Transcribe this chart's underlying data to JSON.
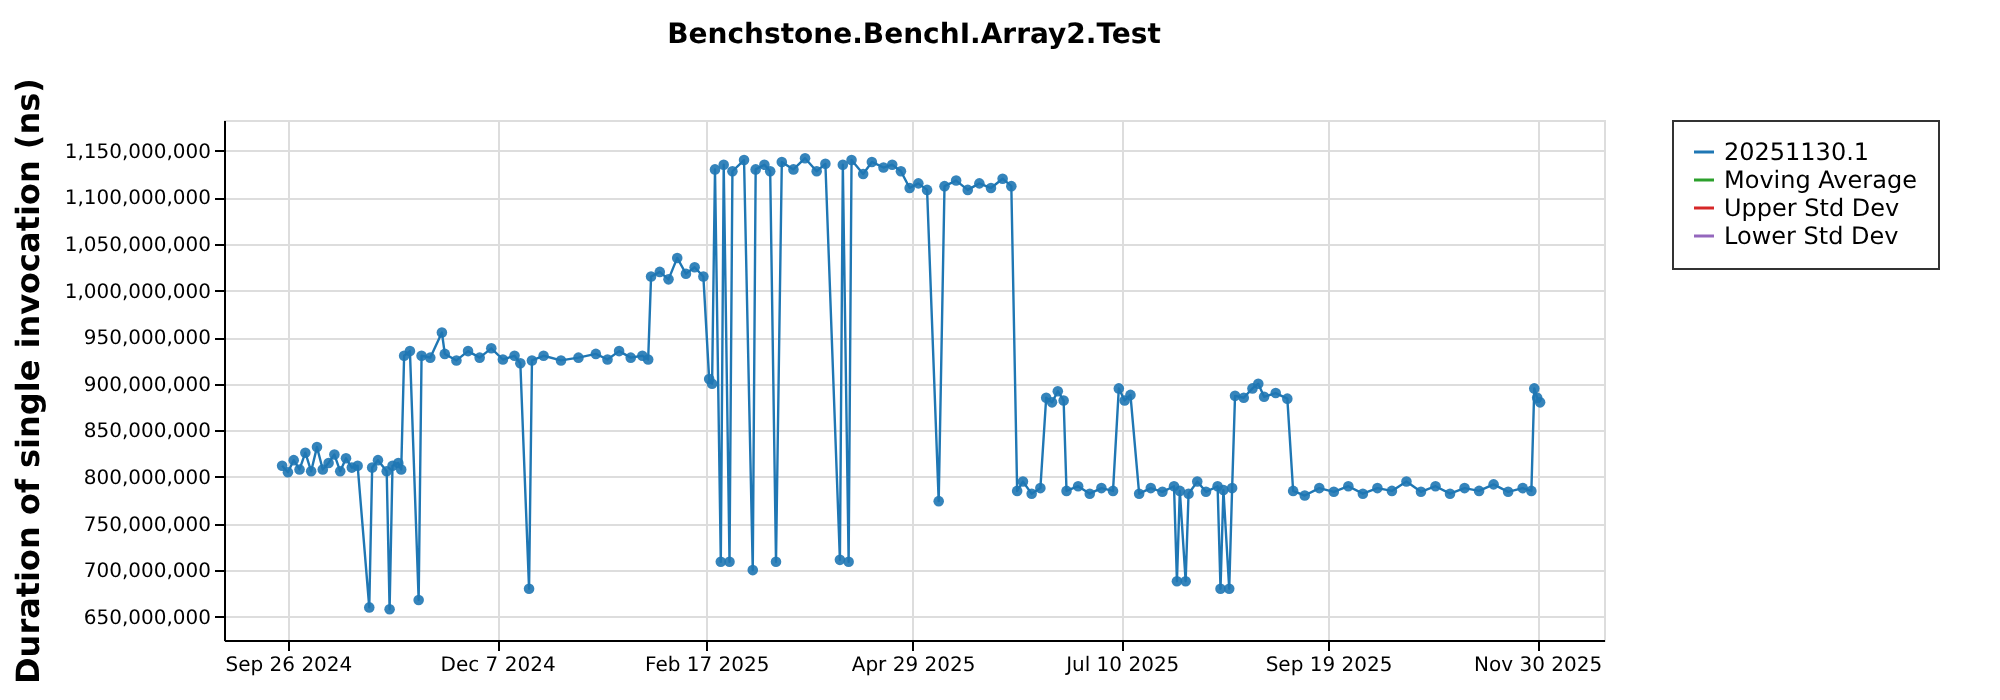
{
  "chart_data": {
    "type": "line",
    "title": "Benchstone.BenchI.Array2.Test",
    "ylabel": "Duration of single invocation (ns)",
    "x": [
      "2024-09-24",
      "2024-09-26",
      "2024-09-28",
      "2024-09-30",
      "2024-10-02",
      "2024-10-04",
      "2024-10-06",
      "2024-10-08",
      "2024-10-10",
      "2024-10-12",
      "2024-10-14",
      "2024-10-16",
      "2024-10-18",
      "2024-10-20",
      "2024-10-24",
      "2024-10-25",
      "2024-10-27",
      "2024-10-30",
      "2024-10-31",
      "2024-11-01",
      "2024-11-03",
      "2024-11-04",
      "2024-11-05",
      "2024-11-07",
      "2024-11-10",
      "2024-11-11",
      "2024-11-14",
      "2024-11-18",
      "2024-11-19",
      "2024-11-23",
      "2024-11-27",
      "2024-12-01",
      "2024-12-05",
      "2024-12-09",
      "2024-12-13",
      "2024-12-15",
      "2024-12-18",
      "2024-12-19",
      "2024-12-23",
      "2024-12-29",
      "2025-01-04",
      "2025-01-10",
      "2025-01-14",
      "2025-01-18",
      "2025-01-22",
      "2025-01-26",
      "2025-01-28",
      "2025-01-29",
      "2025-02-01",
      "2025-02-04",
      "2025-02-07",
      "2025-02-10",
      "2025-02-13",
      "2025-02-16",
      "2025-02-18",
      "2025-02-19",
      "2025-02-20",
      "2025-02-22",
      "2025-02-23",
      "2025-02-25",
      "2025-02-26",
      "2025-03-02",
      "2025-03-05",
      "2025-03-06",
      "2025-03-09",
      "2025-03-11",
      "2025-03-13",
      "2025-03-15",
      "2025-03-19",
      "2025-03-23",
      "2025-03-27",
      "2025-03-30",
      "2025-04-04",
      "2025-04-05",
      "2025-04-07",
      "2025-04-08",
      "2025-04-12",
      "2025-04-15",
      "2025-04-19",
      "2025-04-22",
      "2025-04-25",
      "2025-04-28",
      "2025-05-01",
      "2025-05-04",
      "2025-05-08",
      "2025-05-10",
      "2025-05-14",
      "2025-05-18",
      "2025-05-22",
      "2025-05-26",
      "2025-05-30",
      "2025-06-02",
      "2025-06-04",
      "2025-06-06",
      "2025-06-09",
      "2025-06-12",
      "2025-06-14",
      "2025-06-16",
      "2025-06-18",
      "2025-06-20",
      "2025-06-21",
      "2025-06-25",
      "2025-06-29",
      "2025-07-03",
      "2025-07-07",
      "2025-07-09",
      "2025-07-11",
      "2025-07-13",
      "2025-07-16",
      "2025-07-20",
      "2025-07-24",
      "2025-07-28",
      "2025-07-29",
      "2025-07-30",
      "2025-08-01",
      "2025-08-02",
      "2025-08-05",
      "2025-08-08",
      "2025-08-12",
      "2025-08-13",
      "2025-08-14",
      "2025-08-16",
      "2025-08-17",
      "2025-08-18",
      "2025-08-21",
      "2025-08-24",
      "2025-08-26",
      "2025-08-28",
      "2025-09-01",
      "2025-09-05",
      "2025-09-07",
      "2025-09-11",
      "2025-09-16",
      "2025-09-21",
      "2025-09-26",
      "2025-10-01",
      "2025-10-06",
      "2025-10-11",
      "2025-10-16",
      "2025-10-21",
      "2025-10-26",
      "2025-10-31",
      "2025-11-05",
      "2025-11-10",
      "2025-11-15",
      "2025-11-20",
      "2025-11-25",
      "2025-11-28",
      "2025-11-29",
      "2025-11-30",
      "2025-12-01"
    ],
    "series": [
      {
        "name": "20251130.1",
        "color": "#1f77b4",
        "values": [
          812000000,
          805000000,
          818000000,
          808000000,
          826000000,
          806000000,
          832000000,
          808000000,
          815000000,
          824000000,
          806000000,
          820000000,
          810000000,
          812000000,
          660000000,
          810000000,
          818000000,
          806000000,
          658000000,
          812000000,
          815000000,
          808000000,
          930000000,
          935000000,
          668000000,
          930000000,
          928000000,
          955000000,
          932000000,
          925000000,
          935000000,
          928000000,
          938000000,
          926000000,
          930000000,
          922000000,
          680000000,
          925000000,
          930000000,
          925000000,
          928000000,
          932000000,
          926000000,
          935000000,
          928000000,
          930000000,
          926000000,
          1015000000,
          1020000000,
          1012000000,
          1035000000,
          1018000000,
          1025000000,
          1015000000,
          905000000,
          900000000,
          1130000000,
          709000000,
          1135000000,
          709000000,
          1128000000,
          1140000000,
          700000000,
          1130000000,
          1135000000,
          1128000000,
          709000000,
          1138000000,
          1130000000,
          1142000000,
          1128000000,
          1136000000,
          711000000,
          1135000000,
          709000000,
          1140000000,
          1125000000,
          1138000000,
          1132000000,
          1135000000,
          1128000000,
          1110000000,
          1115000000,
          1108000000,
          774000000,
          1112000000,
          1118000000,
          1108000000,
          1115000000,
          1110000000,
          1120000000,
          1112000000,
          785000000,
          795000000,
          782000000,
          788000000,
          885000000,
          880000000,
          892000000,
          882000000,
          785000000,
          790000000,
          782000000,
          788000000,
          785000000,
          895000000,
          882000000,
          888000000,
          782000000,
          788000000,
          784000000,
          790000000,
          688000000,
          785000000,
          688000000,
          782000000,
          795000000,
          784000000,
          790000000,
          680000000,
          786000000,
          680000000,
          788000000,
          887000000,
          885000000,
          895000000,
          900000000,
          886000000,
          890000000,
          884000000,
          785000000,
          780000000,
          788000000,
          784000000,
          790000000,
          782000000,
          788000000,
          785000000,
          795000000,
          784000000,
          790000000,
          782000000,
          788000000,
          785000000,
          792000000,
          784000000,
          788000000,
          785000000,
          895000000,
          885000000,
          880000000
        ]
      },
      {
        "name": "Moving Average",
        "color": "#2ca02c",
        "values": [
          null,
          null,
          null,
          null,
          null,
          null,
          null,
          null,
          null,
          null,
          null,
          null,
          null,
          null,
          null,
          null,
          null,
          null,
          null,
          null,
          null,
          null,
          null,
          null,
          null,
          null,
          null,
          null,
          null,
          null,
          null,
          null,
          null,
          null,
          null,
          null,
          null,
          null,
          null,
          null,
          null,
          null,
          null,
          null,
          null,
          null,
          null,
          null,
          null,
          null,
          null,
          null,
          null,
          null,
          null,
          null,
          null,
          null,
          null,
          null,
          null,
          null,
          null,
          null,
          null,
          null,
          null,
          null,
          null,
          null,
          null,
          null,
          null,
          null,
          null,
          null,
          null,
          null,
          null,
          null,
          null,
          null,
          null,
          null,
          null,
          null,
          null,
          null,
          null,
          null,
          null,
          null,
          null,
          null,
          null,
          null,
          null,
          null,
          null,
          null,
          null,
          null,
          null,
          null,
          null,
          null,
          null,
          null,
          null,
          null,
          null,
          null,
          null,
          null,
          null,
          null,
          null,
          null,
          null,
          null,
          null,
          null,
          null,
          null,
          null,
          null,
          null,
          null,
          null,
          null,
          null,
          null,
          null,
          null,
          null,
          null,
          null,
          null,
          null,
          null,
          null,
          null,
          null,
          null,
          null,
          null,
          null,
          null,
          null,
          null,
          null
        ]
      },
      {
        "name": "Upper Std Dev",
        "color": "#d62728",
        "values": [
          null,
          null,
          null,
          null,
          null,
          null,
          null,
          null,
          null,
          null,
          null,
          null,
          null,
          null,
          null,
          null,
          null,
          null,
          null,
          null,
          null,
          null,
          null,
          null,
          null,
          null,
          null,
          null,
          null,
          null,
          null,
          null,
          null,
          null,
          null,
          null,
          null,
          null,
          null,
          null,
          null,
          null,
          null,
          null,
          null,
          null,
          null,
          null,
          null,
          null,
          null,
          null,
          null,
          null,
          null,
          null,
          null,
          null,
          null,
          null,
          null,
          null,
          null,
          null,
          null,
          null,
          null,
          null,
          null,
          null,
          null,
          null,
          null,
          null,
          null,
          null,
          null,
          null,
          null,
          null,
          null,
          null,
          null,
          null,
          null,
          null,
          null,
          null,
          null,
          null,
          null,
          null,
          null,
          null,
          null,
          null,
          null,
          null,
          null,
          null,
          null,
          null,
          null,
          null,
          null,
          null,
          null,
          null,
          null,
          null,
          null,
          null,
          null,
          null,
          null,
          null,
          null,
          null,
          null,
          null,
          null,
          null,
          null,
          null,
          null,
          null,
          null,
          null,
          null,
          null,
          null,
          null,
          null,
          null,
          null,
          null,
          null,
          null,
          null,
          null,
          null,
          null,
          null,
          null,
          null,
          null,
          null,
          null,
          null,
          null,
          null
        ]
      },
      {
        "name": "Lower Std Dev",
        "color": "#9467bd",
        "values": [
          null,
          null,
          null,
          null,
          null,
          null,
          null,
          null,
          null,
          null,
          null,
          null,
          null,
          null,
          null,
          null,
          null,
          null,
          null,
          null,
          null,
          null,
          null,
          null,
          null,
          null,
          null,
          null,
          null,
          null,
          null,
          null,
          null,
          null,
          null,
          null,
          null,
          null,
          null,
          null,
          null,
          null,
          null,
          null,
          null,
          null,
          null,
          null,
          null,
          null,
          null,
          null,
          null,
          null,
          null,
          null,
          null,
          null,
          null,
          null,
          null,
          null,
          null,
          null,
          null,
          null,
          null,
          null,
          null,
          null,
          null,
          null,
          null,
          null,
          null,
          null,
          null,
          null,
          null,
          null,
          null,
          null,
          null,
          null,
          null,
          null,
          null,
          null,
          null,
          null,
          null,
          null,
          null,
          null,
          null,
          null,
          null,
          null,
          null,
          null,
          null,
          null,
          null,
          null,
          null,
          null,
          null,
          null,
          null,
          null,
          null,
          null,
          null,
          null,
          null,
          null,
          null,
          null,
          null,
          null,
          null,
          null,
          null,
          null,
          null,
          null,
          null,
          null,
          null,
          null,
          null,
          null,
          null,
          null,
          null,
          null,
          null,
          null,
          null,
          null,
          null,
          null,
          null,
          null,
          null,
          null,
          null,
          null,
          null,
          null,
          null
        ]
      }
    ],
    "xlim": [
      "2024-09-04",
      "2025-12-23"
    ],
    "xticks": [
      {
        "value": "2024-09-26",
        "label": "Sep 26 2024"
      },
      {
        "value": "2024-12-07",
        "label": "Dec 7 2024"
      },
      {
        "value": "2025-02-17",
        "label": "Feb 17 2025"
      },
      {
        "value": "2025-04-29",
        "label": "Apr 29 2025"
      },
      {
        "value": "2025-07-10",
        "label": "Jul 10 2025"
      },
      {
        "value": "2025-09-19",
        "label": "Sep 19 2025"
      },
      {
        "value": "2025-11-30",
        "label": "Nov 30 2025"
      }
    ],
    "ylim": [
      625000000,
      1183000000
    ],
    "yticks": [
      {
        "value": 650000000,
        "label": "650,000,000"
      },
      {
        "value": 700000000,
        "label": "700,000,000"
      },
      {
        "value": 750000000,
        "label": "750,000,000"
      },
      {
        "value": 800000000,
        "label": "800,000,000"
      },
      {
        "value": 850000000,
        "label": "850,000,000"
      },
      {
        "value": 900000000,
        "label": "900,000,000"
      },
      {
        "value": 950000000,
        "label": "950,000,000"
      },
      {
        "value": 1000000000,
        "label": "1,000,000,000"
      },
      {
        "value": 1050000000,
        "label": "1,050,000,000"
      },
      {
        "value": 1100000000,
        "label": "1,100,000,000"
      },
      {
        "value": 1150000000,
        "label": "1,150,000,000"
      }
    ],
    "grid": true,
    "legend": "right",
    "marker": "circle",
    "line_style": "solid"
  }
}
